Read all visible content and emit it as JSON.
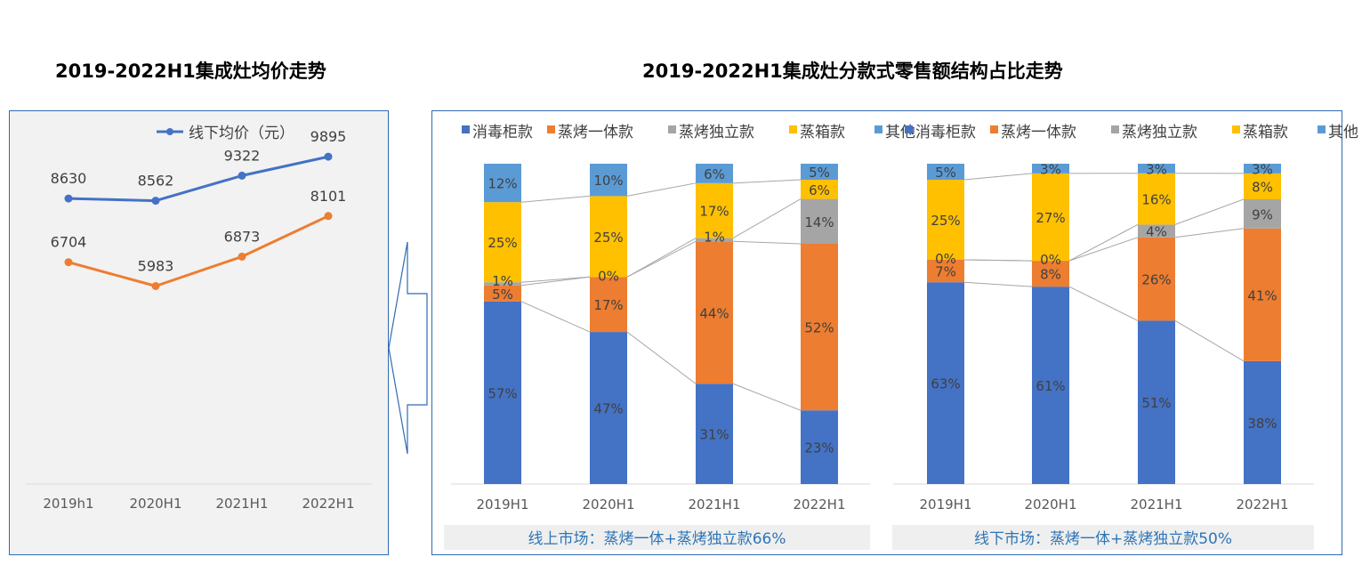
{
  "titles": {
    "left": "2019-2022H1集成灶均价走势",
    "right": "2019-2022H1集成灶分款式零售额结构占比走势"
  },
  "colors": {
    "blue": "#4472c4",
    "orange": "#ed7d31",
    "gray": "#a5a5a5",
    "yellow": "#ffc000",
    "lightblue": "#5b9bd5",
    "frame": "#2e6bb3",
    "footer_text": "#2e75b6",
    "footer_bg": "#efefef"
  },
  "chart_data": [
    {
      "type": "line",
      "categories": [
        "2019h1",
        "2020H1",
        "2021H1",
        "2022H1"
      ],
      "series": [
        {
          "name": "线下均价（元）",
          "values": [
            8630,
            8562,
            9322,
            9895
          ],
          "color": "#4472c4"
        },
        {
          "name": "",
          "values": [
            6704,
            5983,
            6873,
            8101
          ],
          "color": "#ed7d31"
        }
      ],
      "ylim": [
        0,
        11000
      ]
    },
    {
      "type": "bar",
      "stacked": "percent",
      "categories": [
        "2019H1",
        "2020H1",
        "2021H1",
        "2022H1"
      ],
      "series": [
        {
          "name": "消毒柜款",
          "values": [
            57,
            47,
            31,
            23
          ],
          "color": "#4472c4"
        },
        {
          "name": "蒸烤一体款",
          "values": [
            5,
            17,
            44,
            52
          ],
          "color": "#ed7d31"
        },
        {
          "name": "蒸烤独立款",
          "values": [
            1,
            0,
            1,
            14
          ],
          "color": "#a5a5a5"
        },
        {
          "name": "蒸箱款",
          "values": [
            25,
            25,
            17,
            6
          ],
          "color": "#ffc000"
        },
        {
          "name": "其他",
          "values": [
            12,
            10,
            6,
            5
          ],
          "color": "#5b9bd5"
        }
      ],
      "footer": "线上市场：蒸烤一体+蒸烤独立款66%"
    },
    {
      "type": "bar",
      "stacked": "percent",
      "categories": [
        "2019H1",
        "2020H1",
        "2021H1",
        "2022H1"
      ],
      "series": [
        {
          "name": "消毒柜款",
          "values": [
            63,
            61,
            51,
            38
          ],
          "color": "#4472c4"
        },
        {
          "name": "蒸烤一体款",
          "values": [
            7,
            8,
            26,
            41
          ],
          "color": "#ed7d31"
        },
        {
          "name": "蒸烤独立款",
          "values": [
            0,
            0,
            4,
            9
          ],
          "color": "#a5a5a5"
        },
        {
          "name": "蒸箱款",
          "values": [
            25,
            27,
            16,
            8
          ],
          "color": "#ffc000"
        },
        {
          "name": "其他",
          "values": [
            5,
            3,
            3,
            3
          ],
          "color": "#5b9bd5"
        }
      ],
      "footer": "线下市场：蒸烤一体+蒸烤独立款50%"
    }
  ]
}
